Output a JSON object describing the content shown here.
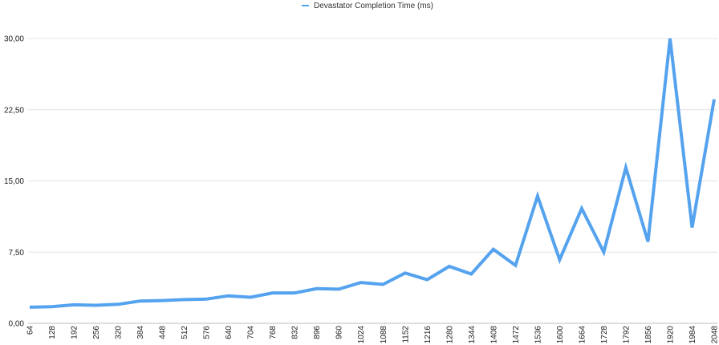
{
  "chart_data": {
    "type": "line",
    "title": "",
    "xlabel": "",
    "ylabel": "",
    "ylim": [
      0,
      30
    ],
    "yticks": [
      "0,00",
      "7,50",
      "15,00",
      "22,50",
      "30,00"
    ],
    "legend_position": "top-center",
    "grid": true,
    "colors": {
      "series": "#55a3ee",
      "grid": "#e4e4e4"
    },
    "categories": [
      "64",
      "128",
      "192",
      "256",
      "320",
      "384",
      "448",
      "512",
      "576",
      "640",
      "704",
      "768",
      "832",
      "896",
      "960",
      "1024",
      "1088",
      "1152",
      "1216",
      "1280",
      "1344",
      "1408",
      "1472",
      "1536",
      "1600",
      "1664",
      "1728",
      "1792",
      "1856",
      "1920",
      "1984",
      "2048"
    ],
    "series": [
      {
        "name": "Devastator Completion Time (ms)",
        "values": [
          1.7,
          1.75,
          1.95,
          1.9,
          2.0,
          2.35,
          2.4,
          2.5,
          2.55,
          2.9,
          2.75,
          3.2,
          3.2,
          3.65,
          3.6,
          4.3,
          4.1,
          5.3,
          4.6,
          6.0,
          5.2,
          7.8,
          6.1,
          13.4,
          6.7,
          12.1,
          7.5,
          16.4,
          8.6,
          30.0,
          10.1,
          23.6
        ]
      }
    ]
  }
}
